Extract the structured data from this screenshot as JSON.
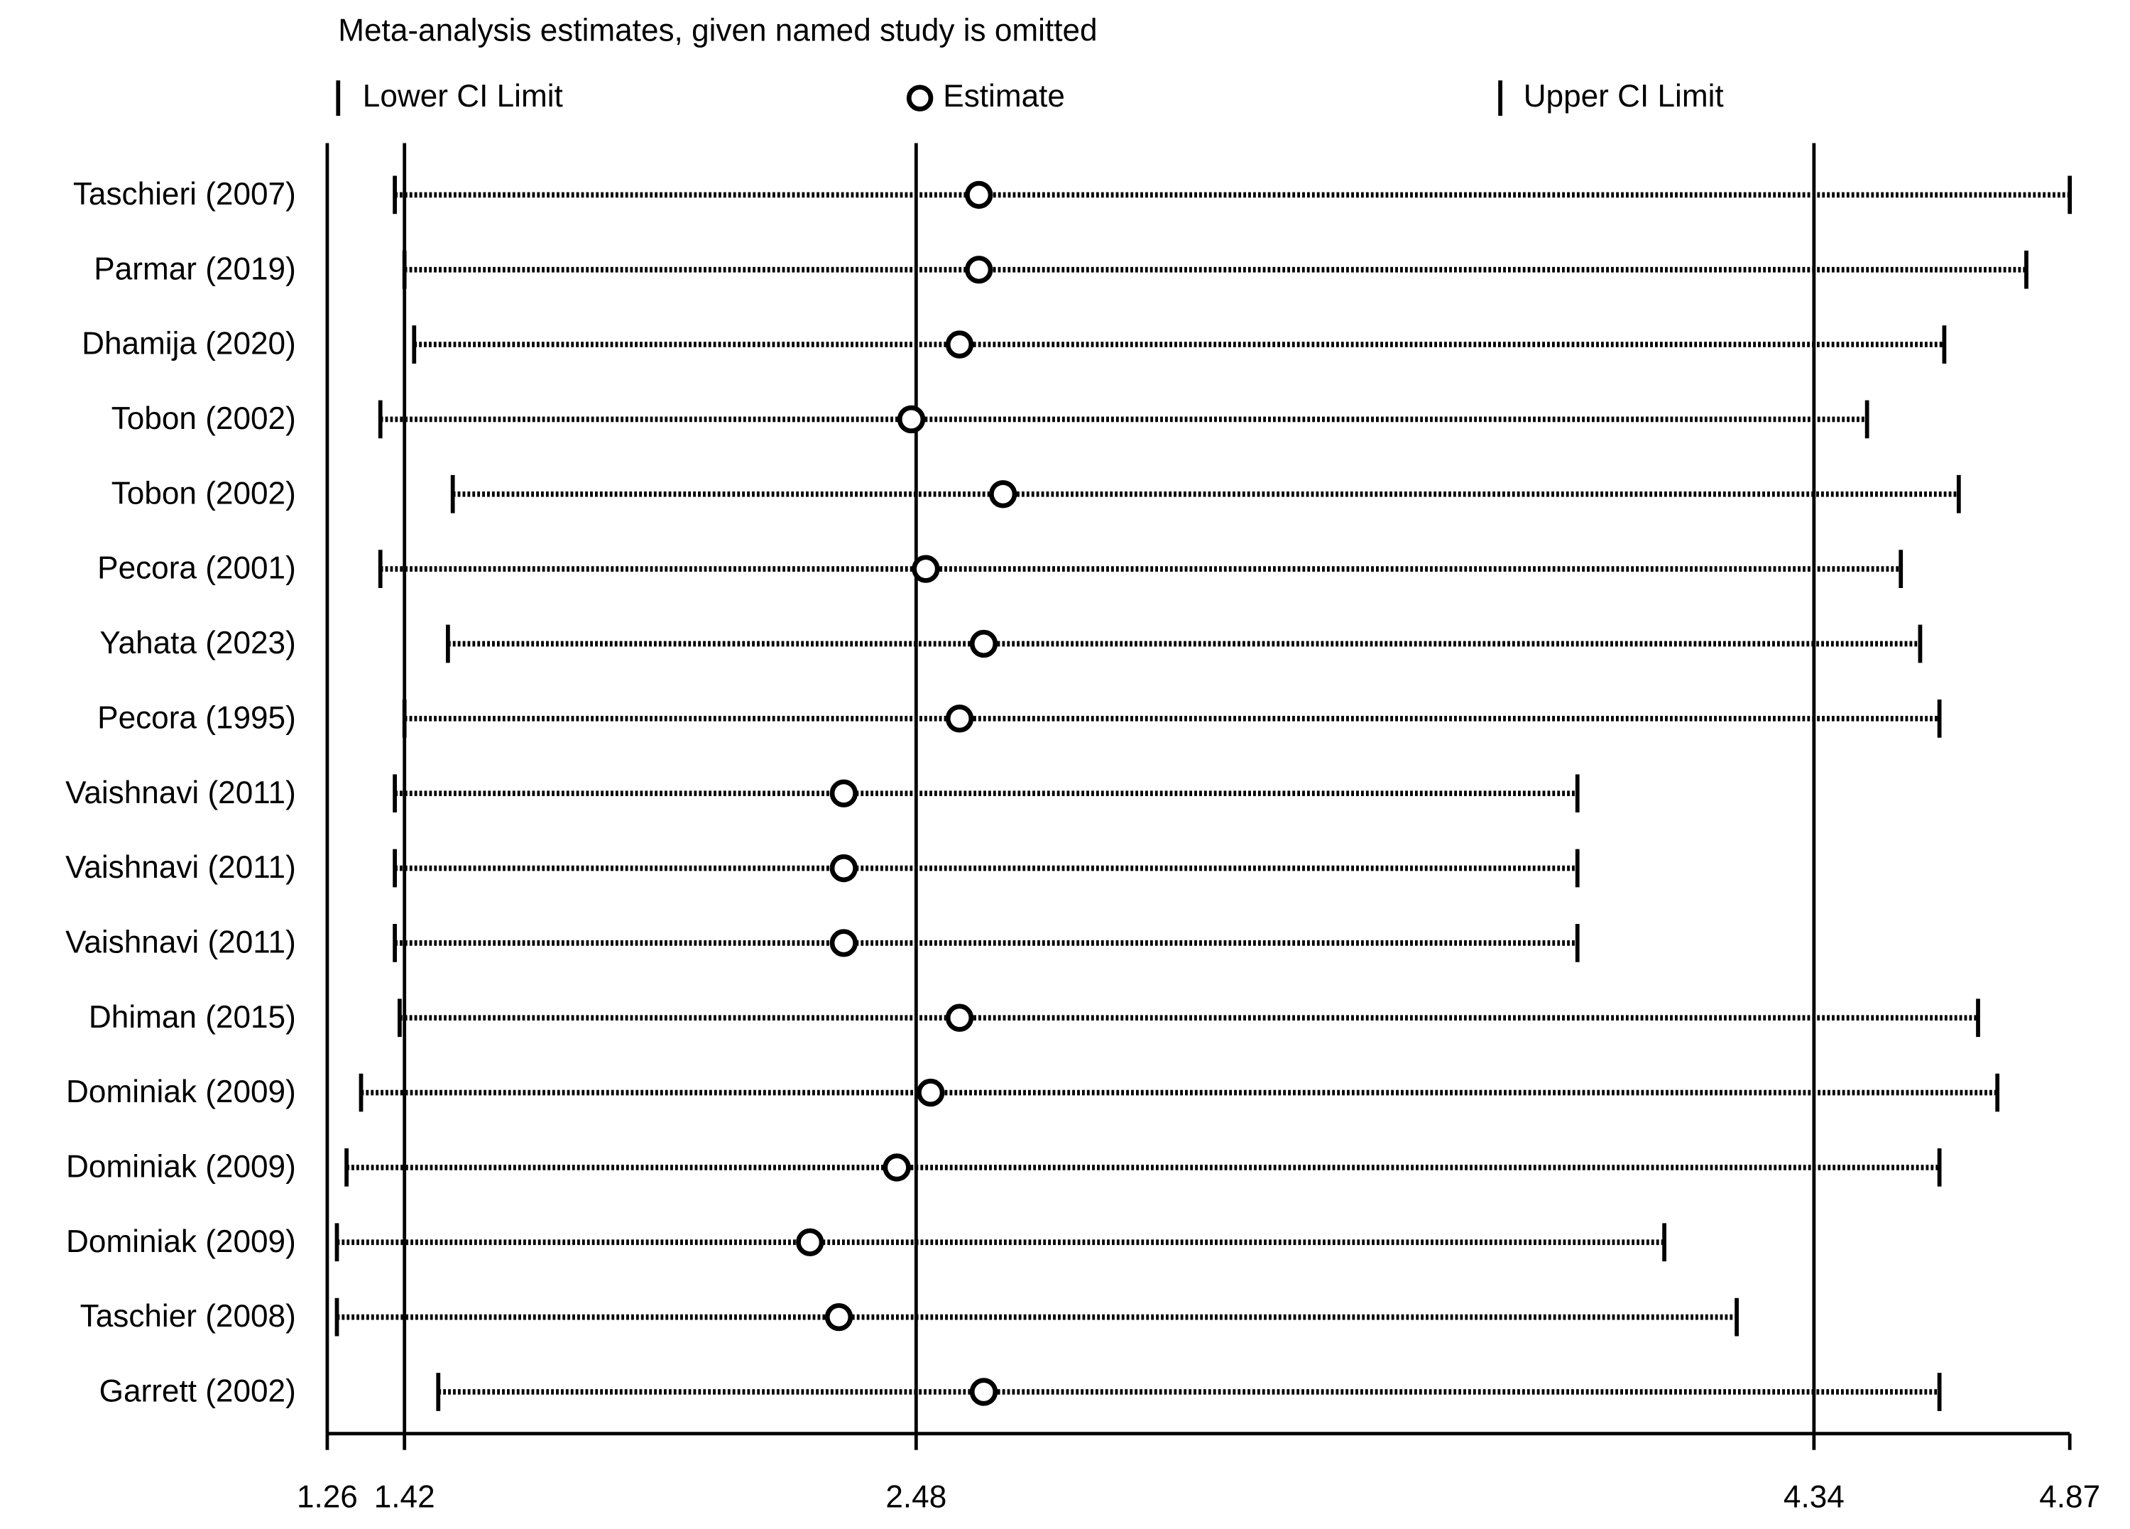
{
  "chart_data": {
    "type": "influence",
    "title": "Meta-analysis estimates, given named study is omitted",
    "categories": [
      "Taschieri (2007)",
      "Parmar (2019)",
      "Dhamija (2020)",
      "Tobon (2002)",
      "Tobon (2002)",
      "Pecora (2001)",
      "Yahata (2023)",
      "Pecora (1995)",
      "Vaishnavi (2011)",
      "Vaishnavi (2011)",
      "Vaishnavi (2011)",
      "Dhiman (2015)",
      "Dominiak (2009)",
      "Dominiak (2009)",
      "Dominiak (2009)",
      "Taschier (2008)",
      "Garrett (2002)"
    ],
    "series": [
      {
        "name": "Lower CI Limit",
        "color": "#000000",
        "values": [
          1.4,
          1.42,
          1.44,
          1.37,
          1.52,
          1.37,
          1.51,
          1.42,
          1.4,
          1.4,
          1.4,
          1.41,
          1.33,
          1.3,
          1.28,
          1.28,
          1.49
        ]
      },
      {
        "name": "Estimate",
        "color": "#000000",
        "values": [
          2.61,
          2.61,
          2.57,
          2.47,
          2.66,
          2.5,
          2.62,
          2.57,
          2.33,
          2.33,
          2.33,
          2.57,
          2.51,
          2.44,
          2.26,
          2.32,
          2.62
        ]
      },
      {
        "name": "Upper CI Limit",
        "color": "#000000",
        "values": [
          4.87,
          4.78,
          4.61,
          4.45,
          4.64,
          4.52,
          4.56,
          4.6,
          3.85,
          3.85,
          3.85,
          4.68,
          4.72,
          4.6,
          4.03,
          4.18,
          4.6
        ]
      }
    ],
    "overall": {
      "lower": 1.42,
      "estimate": 2.48,
      "upper": 4.34
    },
    "xlim": [
      1.26,
      4.87
    ],
    "xticks": [
      1.26,
      1.42,
      2.48,
      4.34,
      4.87
    ]
  }
}
